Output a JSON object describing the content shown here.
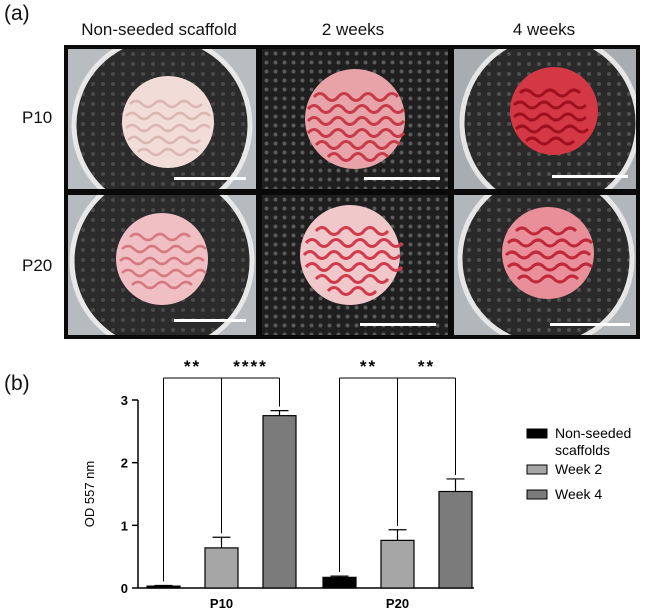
{
  "panel_a": {
    "label": "(a)",
    "columns": [
      "Non-seeded scaffold",
      "2 weeks",
      "4 weeks"
    ],
    "rows": [
      "P10",
      "P20"
    ]
  },
  "panel_b": {
    "label": "(b)"
  },
  "colors": {
    "non_seeded": "#000000",
    "week2": "#a6a6a6",
    "week4": "#7b7b7b"
  },
  "chart_data": {
    "type": "bar",
    "categories": [
      "P10",
      "P20"
    ],
    "series": [
      {
        "name": "Non-seeded scaffolds",
        "values": [
          0.03,
          0.17
        ],
        "errors": [
          0.01,
          0.02
        ]
      },
      {
        "name": "Week 2",
        "values": [
          0.64,
          0.76
        ],
        "errors": [
          0.17,
          0.17
        ]
      },
      {
        "name": "Week 4",
        "values": [
          2.75,
          1.54
        ],
        "errors": [
          0.08,
          0.2
        ]
      }
    ],
    "legend_lines": [
      [
        "Non-seeded",
        "scaffolds"
      ],
      [
        "Week 2"
      ],
      [
        "Week 4"
      ]
    ],
    "ylabel": "OD 557 nm",
    "xlabel": "",
    "ylim": [
      0,
      3
    ],
    "yticks": [
      "0",
      "1",
      "2",
      "3"
    ],
    "significance": [
      {
        "category": "P10",
        "from": 0,
        "to": 1,
        "label": "**"
      },
      {
        "category": "P10",
        "from": 1,
        "to": 2,
        "label": "****"
      },
      {
        "category": "P20",
        "from": 0,
        "to": 1,
        "label": "**"
      },
      {
        "category": "P20",
        "from": 1,
        "to": 2,
        "label": "**"
      }
    ],
    "legend_position": "right",
    "grid": false
  }
}
